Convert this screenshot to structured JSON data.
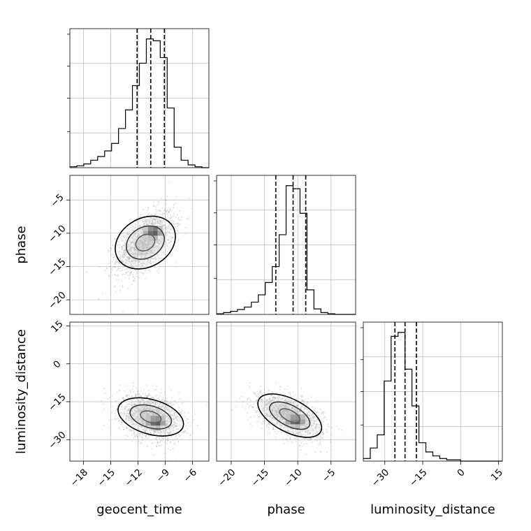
{
  "chart_data": {
    "type": "corner",
    "parameters": [
      "geocent_time",
      "phase",
      "luminosity_distance"
    ],
    "axis_labels": {
      "x": [
        "geocent_time",
        "phase",
        "luminosity_distance"
      ],
      "y": [
        "phase",
        "luminosity_distance"
      ]
    },
    "ranges": [
      [
        -19.5,
        -4.2
      ],
      [
        -22.2,
        -1.3
      ],
      [
        -38.5,
        16.5
      ]
    ],
    "ticks": [
      {
        "values": [
          -18,
          -15,
          -12,
          -9,
          -6
        ],
        "labels": [
          "−18",
          "−15",
          "−12",
          "−9",
          "−6"
        ]
      },
      {
        "values": [
          -20,
          -15,
          -10,
          -5
        ],
        "labels": [
          "−20",
          "−15",
          "−10",
          "−5"
        ]
      },
      {
        "values": [
          -30,
          -15,
          0,
          15
        ],
        "labels": [
          "−30",
          "−15",
          "0",
          "15"
        ]
      }
    ],
    "quantiles": [
      {
        "values": [
          -12.1,
          -10.6,
          -9.1
        ]
      },
      {
        "values": [
          -13.3,
          -10.7,
          -8.8
        ]
      },
      {
        "values": [
          -26.0,
          -22.0,
          -17.5
        ]
      }
    ],
    "histograms": [
      {
        "edges": [
          -19.5,
          -18.735,
          -17.97,
          -17.205,
          -16.44,
          -15.675,
          -14.91,
          -14.145,
          -13.38,
          -12.615,
          -11.85,
          -11.085,
          -10.32,
          -9.555,
          -8.79,
          -8.025,
          -7.26,
          -6.495,
          -5.73,
          -4.965,
          -4.2
        ],
        "counts": [
          1,
          2,
          4,
          8,
          12,
          18,
          26,
          42,
          62,
          88,
          112,
          138,
          136,
          118,
          64,
          22,
          8,
          3,
          1,
          0
        ]
      },
      {
        "edges": [
          -22.2,
          -21.155,
          -20.11,
          -19.065,
          -18.02,
          -16.975,
          -15.93,
          -14.885,
          -13.84,
          -12.795,
          -11.75,
          -10.705,
          -9.66,
          -8.615,
          -7.57,
          -6.525,
          -5.48,
          -4.435,
          -3.39,
          -2.345,
          -1.3
        ],
        "counts": [
          1,
          3,
          5,
          8,
          12,
          20,
          32,
          52,
          78,
          130,
          210,
          205,
          165,
          40,
          9,
          3,
          1,
          0,
          0,
          0
        ]
      },
      {
        "edges": [
          -38.5,
          -35.75,
          -33.0,
          -30.25,
          -27.5,
          -24.75,
          -22.0,
          -19.25,
          -16.5,
          -13.75,
          -11.0,
          -8.25,
          -5.5,
          -2.75,
          0.0,
          2.75,
          5.5,
          8.25,
          11.0,
          13.75,
          16.5
        ],
        "counts": [
          2,
          10,
          20,
          61,
          95,
          98,
          70,
          42,
          14,
          7,
          4,
          2,
          1,
          1,
          0,
          0,
          0,
          0,
          0,
          0
        ]
      }
    ],
    "pairs": [
      {
        "x": 0,
        "y": 1,
        "mean": [
          -11.2,
          -11.4
        ],
        "sd": [
          1.6,
          2.4
        ],
        "corr": 0.55,
        "peak": [
          -10.1,
          -10.0
        ]
      },
      {
        "x": 0,
        "y": 2,
        "mean": [
          -10.6,
          -21.0
        ],
        "sd": [
          1.7,
          4.5
        ],
        "corr": -0.3,
        "peak": [
          -9.8,
          -23.5
        ]
      },
      {
        "x": 1,
        "y": 2,
        "mean": [
          -11.2,
          -20.5
        ],
        "sd": [
          2.4,
          4.3
        ],
        "corr": -0.5,
        "peak": [
          -10.0,
          -23.0
        ]
      }
    ],
    "grid": true
  }
}
